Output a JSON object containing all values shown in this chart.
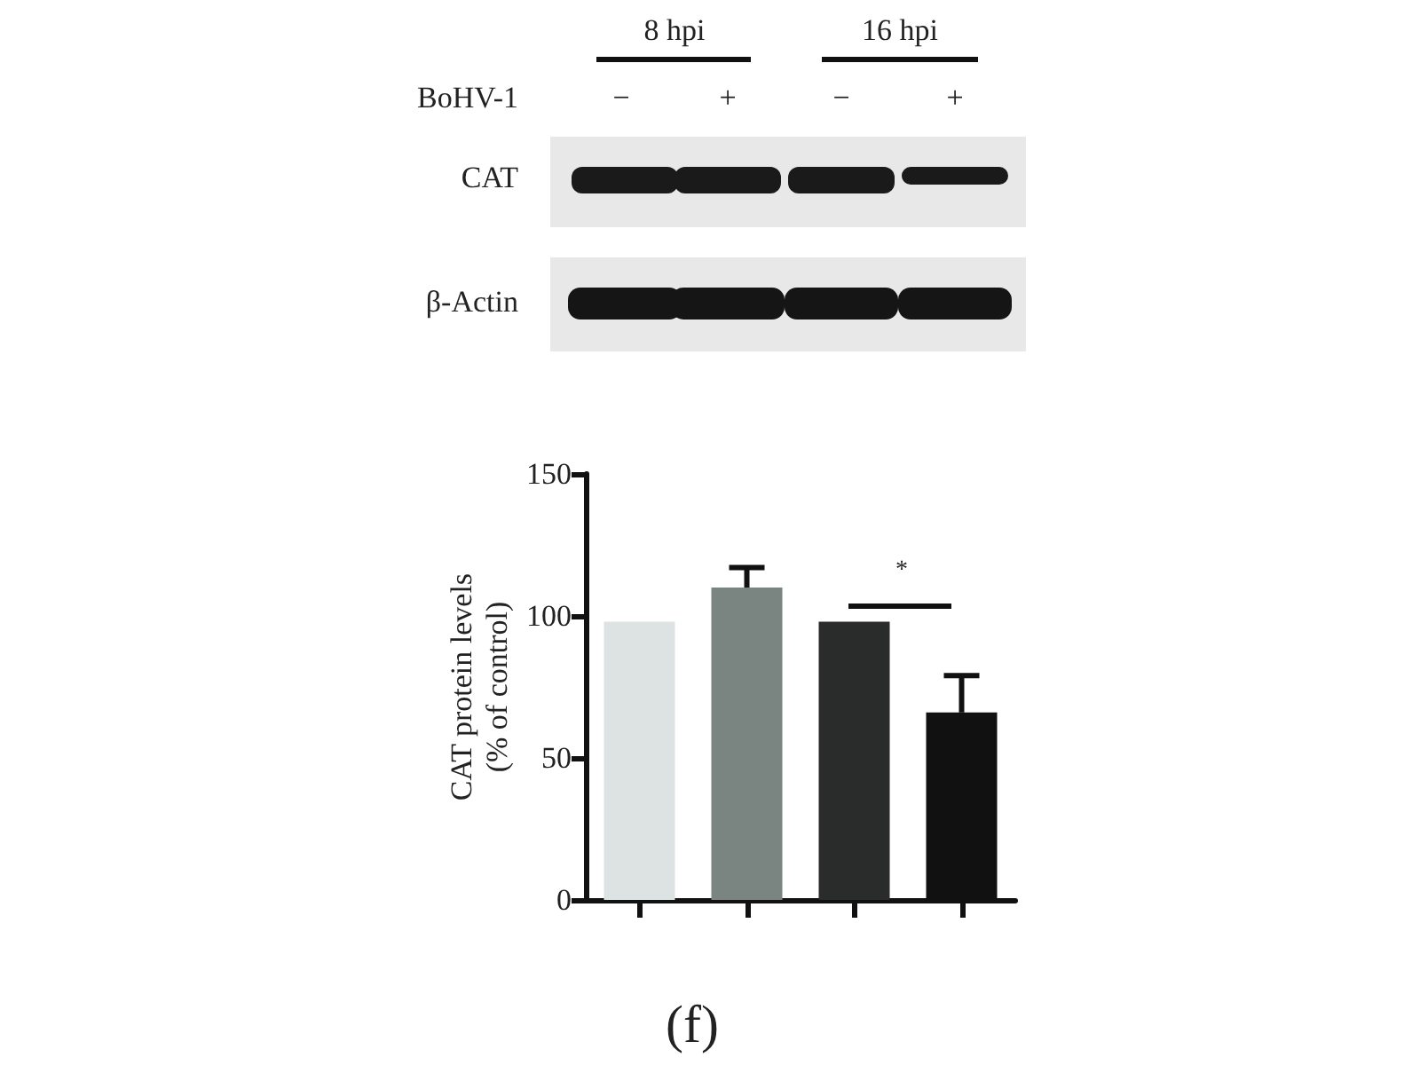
{
  "chart_data": {
    "type": "bar",
    "ylabel": "CAT protein levels\n(% of control)",
    "categories": [
      null,
      null,
      null,
      null
    ],
    "values": [
      98,
      110,
      98,
      66
    ],
    "colors": [
      "#dde2e2",
      "#7a8582",
      "#2a2b2b",
      "#111111"
    ],
    "errors": [
      null,
      [
        110,
        117
      ],
      null,
      [
        66,
        79
      ]
    ],
    "ylim": [
      0,
      150
    ],
    "yticks": [
      0,
      50,
      100,
      150
    ],
    "grid": false,
    "annotations": [
      "8 hpi",
      "16 hpi",
      "BoHV-1",
      "−",
      "+",
      "−",
      "+",
      "CAT",
      "β-Actin",
      "*",
      "(f)"
    ]
  }
}
